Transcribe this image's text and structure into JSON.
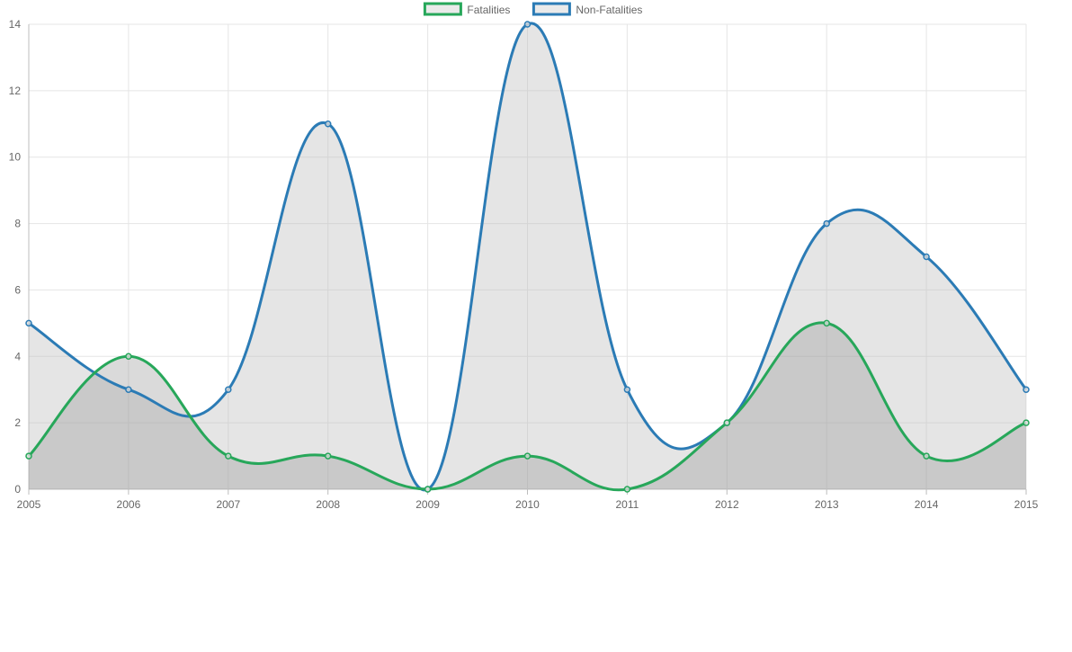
{
  "chart_data": {
    "type": "line",
    "title": "",
    "xlabel": "",
    "ylabel": "",
    "categories": [
      "2005",
      "2006",
      "2007",
      "2008",
      "2009",
      "2010",
      "2011",
      "2012",
      "2013",
      "2014",
      "2015"
    ],
    "ylim": [
      0,
      14
    ],
    "yticks": [
      0,
      2,
      4,
      6,
      8,
      10,
      12,
      14
    ],
    "grid": true,
    "legend_position": "top",
    "series": [
      {
        "name": "Fatalities",
        "values": [
          1,
          4,
          1,
          1,
          0,
          1,
          0,
          2,
          5,
          1,
          2
        ],
        "color": "#27a75a",
        "fill": "rgba(150,150,150,0.35)"
      },
      {
        "name": "Non-Fatalities",
        "values": [
          5,
          3,
          3,
          11,
          0,
          14,
          3,
          2,
          8,
          7,
          3
        ],
        "color": "#2b7bb5",
        "fill": "rgba(190,190,190,0.4)"
      }
    ]
  }
}
